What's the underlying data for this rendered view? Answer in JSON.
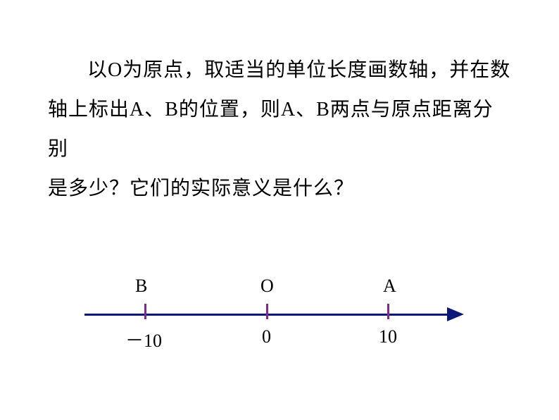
{
  "text": {
    "line1": "以O为原点，取适当的单位长度画数轴，并在数",
    "line2": "轴上标出A、B的位置，则A、B两点与原点距离分别",
    "line3": "是多少？它们的实际意义是什么？"
  },
  "diagram": {
    "type": "number-line",
    "axis_color": "#0b187a",
    "tick_color": "#812991",
    "points": [
      {
        "name": "B",
        "value": "－10",
        "label_top": "B"
      },
      {
        "name": "O",
        "value": "0",
        "label_top": "O"
      },
      {
        "name": "A",
        "value": "10",
        "label_top": "A"
      }
    ],
    "label_fontsize": 26,
    "text_fontsize": 28,
    "background_color": "#ffffff"
  }
}
